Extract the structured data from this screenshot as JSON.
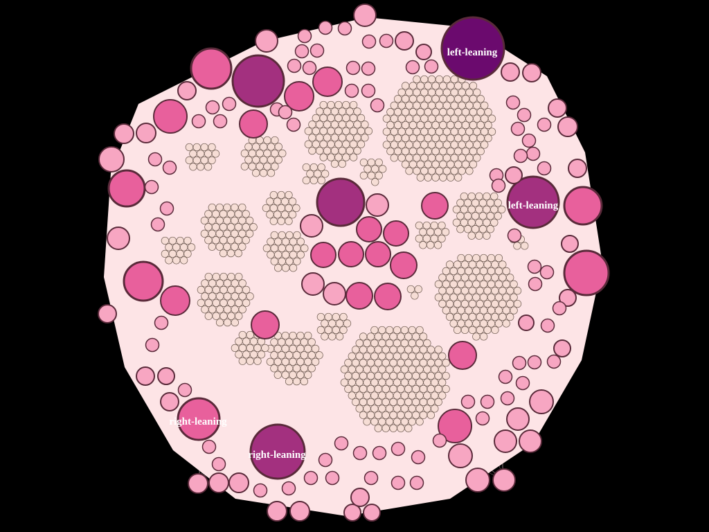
{
  "graph": {
    "background": "#000000",
    "edge_color": "#ffd9e0",
    "node_fill_light": "#f7a6c2",
    "node_fill_mid": "#e8609c",
    "node_fill_dark": "#a3307f",
    "node_fill_darkest": "#6b0a6e",
    "small_node_fill": "#f6ddd5",
    "node_stroke": "#5a2a3a",
    "labels": [
      {
        "id": "left-1",
        "text": "left-leaning"
      },
      {
        "id": "left-2",
        "text": "left-leaning"
      },
      {
        "id": "right-1",
        "text": "right-leaning"
      },
      {
        "id": "right-2",
        "text": "right-leaning"
      }
    ]
  }
}
